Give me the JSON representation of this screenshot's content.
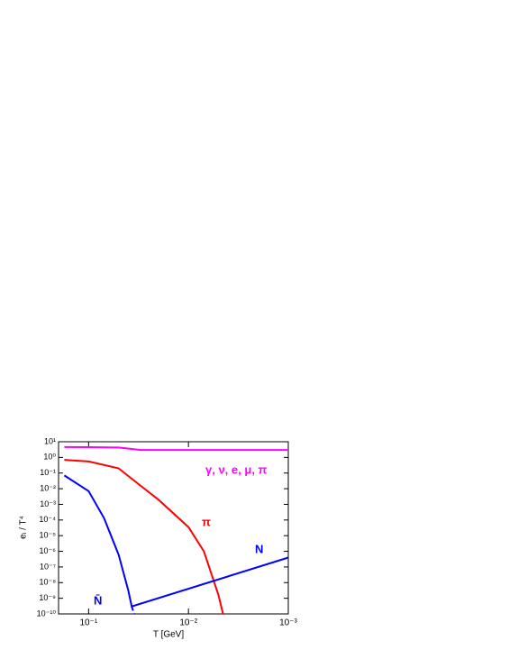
{
  "chart_data": {
    "type": "line",
    "xlabel": "T [GeV]",
    "ylabel": "eᵢ / T⁴",
    "xscale": "log",
    "yscale": "log",
    "xlim": [
      0.2,
      0.001
    ],
    "ylim": [
      1e-10,
      10
    ],
    "xticks": [
      {
        "value": 0.1,
        "label": "10⁻¹"
      },
      {
        "value": 0.01,
        "label": "10⁻²"
      },
      {
        "value": 0.001,
        "label": "10⁻³"
      }
    ],
    "yticks": [
      {
        "value": 10,
        "label": "10¹"
      },
      {
        "value": 1,
        "label": "10⁰"
      },
      {
        "value": 0.1,
        "label": "10⁻¹"
      },
      {
        "value": 0.01,
        "label": "10⁻²"
      },
      {
        "value": 0.001,
        "label": "10⁻³"
      },
      {
        "value": 0.0001,
        "label": "10⁻⁴"
      },
      {
        "value": 1e-05,
        "label": "10⁻⁵"
      },
      {
        "value": 1e-06,
        "label": "10⁻⁶"
      },
      {
        "value": 1e-07,
        "label": "10⁻⁷"
      },
      {
        "value": 1e-08,
        "label": "10⁻⁸"
      },
      {
        "value": 1e-09,
        "label": "10⁻⁹"
      },
      {
        "value": 1e-10,
        "label": "10⁻¹⁰"
      }
    ],
    "series": [
      {
        "name": "γ, ν, e, μ, π",
        "color": "#ff00ff",
        "dash": false,
        "x": [
          0.175,
          0.1,
          0.05,
          0.03,
          0.01,
          0.001
        ],
        "values": [
          4.6,
          4.5,
          4.3,
          3.0,
          3.0,
          3.0
        ]
      },
      {
        "name": "π",
        "color": "#ff0000",
        "dash": false,
        "x": [
          0.175,
          0.1,
          0.05,
          0.03,
          0.02,
          0.01,
          0.007,
          0.005,
          0.0045
        ],
        "values": [
          0.7,
          0.55,
          0.2,
          0.015,
          0.002,
          3.5e-05,
          1e-06,
          1.6e-09,
          1e-10
        ]
      },
      {
        "name": "N",
        "color": "#0000ff",
        "dash": false,
        "x": [
          0.175,
          0.1,
          0.07,
          0.05,
          0.04,
          0.037,
          0.001
        ],
        "values": [
          0.07,
          0.007,
          0.00013,
          6e-07,
          3e-09,
          3e-10,
          4e-07
        ]
      },
      {
        "name": "N̄",
        "color": "#0000ff",
        "dash": true,
        "x": [
          0.037,
          0.035
        ],
        "values": [
          3e-10,
          1e-10
        ]
      }
    ]
  }
}
